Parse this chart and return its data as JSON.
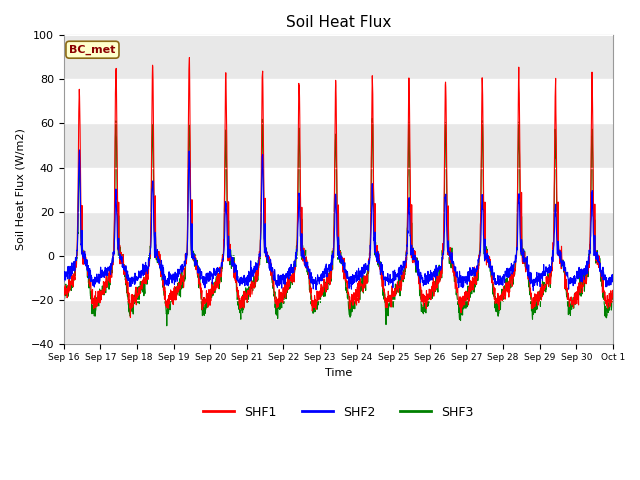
{
  "title": "Soil Heat Flux",
  "ylabel": "Soil Heat Flux (W/m2)",
  "xlabel": "Time",
  "ylim": [
    -40,
    100
  ],
  "yticks": [
    -40,
    -20,
    0,
    20,
    40,
    60,
    80,
    100
  ],
  "annotation_text": "BC_met",
  "annotation_color": "#8B0000",
  "annotation_bg": "#FFFFCC",
  "annotation_border": "#8B6914",
  "line_colors": {
    "SHF1": "red",
    "SHF2": "blue",
    "SHF3": "green"
  },
  "legend_labels": [
    "SHF1",
    "SHF2",
    "SHF3"
  ],
  "x_tick_labels": [
    "Sep 16",
    "Sep 17",
    "Sep 18",
    "Sep 19",
    "Sep 20",
    "Sep 21",
    "Sep 22",
    "Sep 23",
    "Sep 24",
    "Sep 25",
    "Sep 26",
    "Sep 27",
    "Sep 28",
    "Sep 29",
    "Sep 30",
    "Oct 1"
  ],
  "fig_facecolor": "#ffffff",
  "plot_bg": "#ffffff",
  "grid_color": "#D8D8D8",
  "num_days": 15,
  "points_per_day": 144,
  "shf1_day_peak": [
    76,
    86,
    87,
    89,
    83,
    85,
    80,
    79,
    80,
    80,
    80,
    80,
    83,
    77,
    81
  ],
  "shf2_day_peak": [
    48,
    28,
    34,
    46,
    25,
    46,
    28,
    28,
    30,
    25,
    28,
    27,
    28,
    22,
    28
  ],
  "shf3_day_peak": [
    42,
    59,
    60,
    60,
    55,
    61,
    58,
    58,
    62,
    58,
    60,
    61,
    60,
    55,
    57
  ],
  "shf1_night": -18,
  "shf2_night": -10,
  "shf3_night": -18,
  "shf1_deep_night": -22,
  "shf2_deep_night": -12,
  "shf3_deep_night": -26
}
